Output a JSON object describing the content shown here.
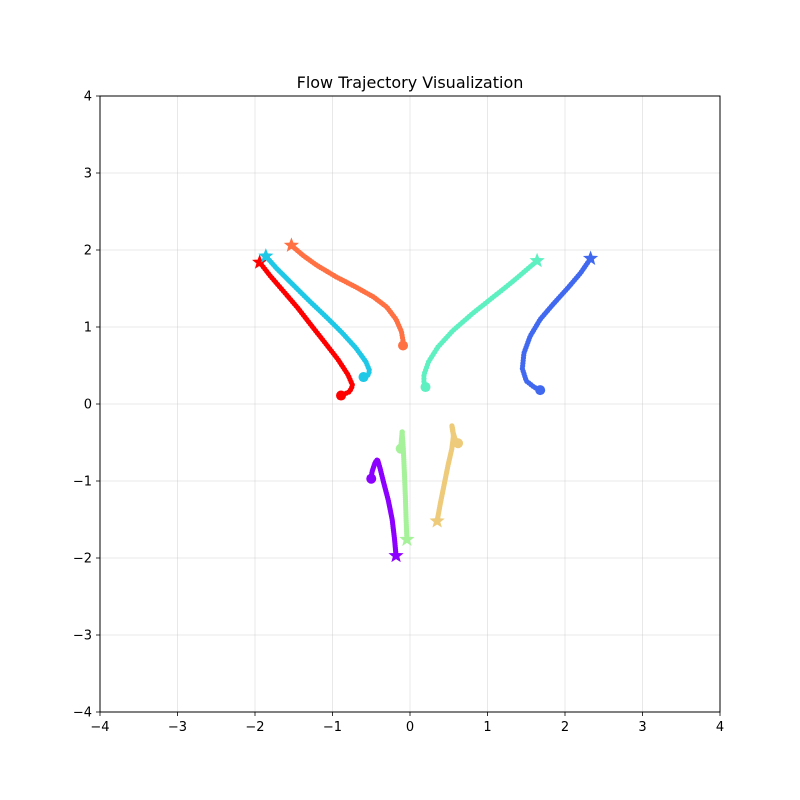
{
  "chart_data": {
    "type": "scatter",
    "title": "Flow Trajectory Visualization",
    "xlabel": "",
    "ylabel": "",
    "xlim": [
      -4,
      4
    ],
    "ylim": [
      -4,
      4
    ],
    "grid": true,
    "x_ticks": [
      -4,
      -3,
      -2,
      -1,
      0,
      1,
      2,
      3,
      4
    ],
    "y_ticks": [
      -4,
      -3,
      -2,
      -1,
      0,
      1,
      2,
      3,
      4
    ],
    "x_tick_labels": [
      "−4",
      "−3",
      "−2",
      "−1",
      "0",
      "1",
      "2",
      "3",
      "4"
    ],
    "y_tick_labels": [
      "−4",
      "−3",
      "−2",
      "−1",
      "0",
      "1",
      "2",
      "3",
      "4"
    ],
    "markers": {
      "start": "star",
      "end": "circle"
    },
    "series": [
      {
        "color": "#ff0000",
        "path": [
          [
            -1.94,
            1.84
          ],
          [
            -1.8,
            1.66
          ],
          [
            -1.62,
            1.45
          ],
          [
            -1.45,
            1.25
          ],
          [
            -1.28,
            1.03
          ],
          [
            -1.1,
            0.8
          ],
          [
            -0.93,
            0.58
          ],
          [
            -0.8,
            0.38
          ],
          [
            -0.74,
            0.24
          ],
          [
            -0.78,
            0.16
          ],
          [
            -0.89,
            0.11
          ]
        ]
      },
      {
        "color": "#1ec8e6",
        "path": [
          [
            -1.86,
            1.92
          ],
          [
            -1.72,
            1.76
          ],
          [
            -1.52,
            1.56
          ],
          [
            -1.3,
            1.34
          ],
          [
            -1.08,
            1.13
          ],
          [
            -0.88,
            0.93
          ],
          [
            -0.7,
            0.73
          ],
          [
            -0.57,
            0.55
          ],
          [
            -0.52,
            0.43
          ],
          [
            -0.55,
            0.36
          ],
          [
            -0.6,
            0.35
          ]
        ]
      },
      {
        "color": "#ff7043",
        "path": [
          [
            -1.53,
            2.06
          ],
          [
            -1.38,
            1.93
          ],
          [
            -1.2,
            1.8
          ],
          [
            -0.95,
            1.65
          ],
          [
            -0.7,
            1.52
          ],
          [
            -0.47,
            1.39
          ],
          [
            -0.3,
            1.26
          ],
          [
            -0.18,
            1.1
          ],
          [
            -0.11,
            0.94
          ],
          [
            -0.09,
            0.82
          ],
          [
            -0.09,
            0.76
          ]
        ]
      },
      {
        "color": "#5ef0c0",
        "path": [
          [
            1.64,
            1.86
          ],
          [
            1.5,
            1.74
          ],
          [
            1.3,
            1.57
          ],
          [
            1.05,
            1.37
          ],
          [
            0.8,
            1.17
          ],
          [
            0.55,
            0.95
          ],
          [
            0.36,
            0.74
          ],
          [
            0.24,
            0.55
          ],
          [
            0.18,
            0.38
          ],
          [
            0.18,
            0.27
          ],
          [
            0.2,
            0.22
          ]
        ]
      },
      {
        "color": "#4169f0",
        "path": [
          [
            2.33,
            1.89
          ],
          [
            2.2,
            1.7
          ],
          [
            2.03,
            1.5
          ],
          [
            1.85,
            1.3
          ],
          [
            1.68,
            1.1
          ],
          [
            1.55,
            0.88
          ],
          [
            1.47,
            0.66
          ],
          [
            1.45,
            0.46
          ],
          [
            1.5,
            0.3
          ],
          [
            1.6,
            0.22
          ],
          [
            1.68,
            0.18
          ]
        ]
      },
      {
        "color": "#8b00ff",
        "path": [
          [
            -0.18,
            -1.97
          ],
          [
            -0.2,
            -1.75
          ],
          [
            -0.23,
            -1.5
          ],
          [
            -0.28,
            -1.25
          ],
          [
            -0.34,
            -1.02
          ],
          [
            -0.39,
            -0.82
          ],
          [
            -0.42,
            -0.72
          ],
          [
            -0.45,
            -0.76
          ],
          [
            -0.49,
            -0.88
          ],
          [
            -0.5,
            -0.97
          ]
        ]
      },
      {
        "color": "#a6f29a",
        "path": [
          [
            -0.04,
            -1.76
          ],
          [
            -0.05,
            -1.5
          ],
          [
            -0.06,
            -1.2
          ],
          [
            -0.07,
            -0.95
          ],
          [
            -0.08,
            -0.72
          ],
          [
            -0.09,
            -0.52
          ],
          [
            -0.1,
            -0.4
          ],
          [
            -0.1,
            -0.35
          ],
          [
            -0.11,
            -0.46
          ],
          [
            -0.12,
            -0.58
          ]
        ]
      },
      {
        "color": "#eecb7a",
        "path": [
          [
            0.35,
            -1.52
          ],
          [
            0.39,
            -1.3
          ],
          [
            0.44,
            -1.05
          ],
          [
            0.49,
            -0.8
          ],
          [
            0.54,
            -0.58
          ],
          [
            0.56,
            -0.42
          ],
          [
            0.55,
            -0.32
          ],
          [
            0.54,
            -0.28
          ],
          [
            0.55,
            -0.35
          ],
          [
            0.58,
            -0.45
          ],
          [
            0.62,
            -0.51
          ]
        ]
      }
    ]
  }
}
